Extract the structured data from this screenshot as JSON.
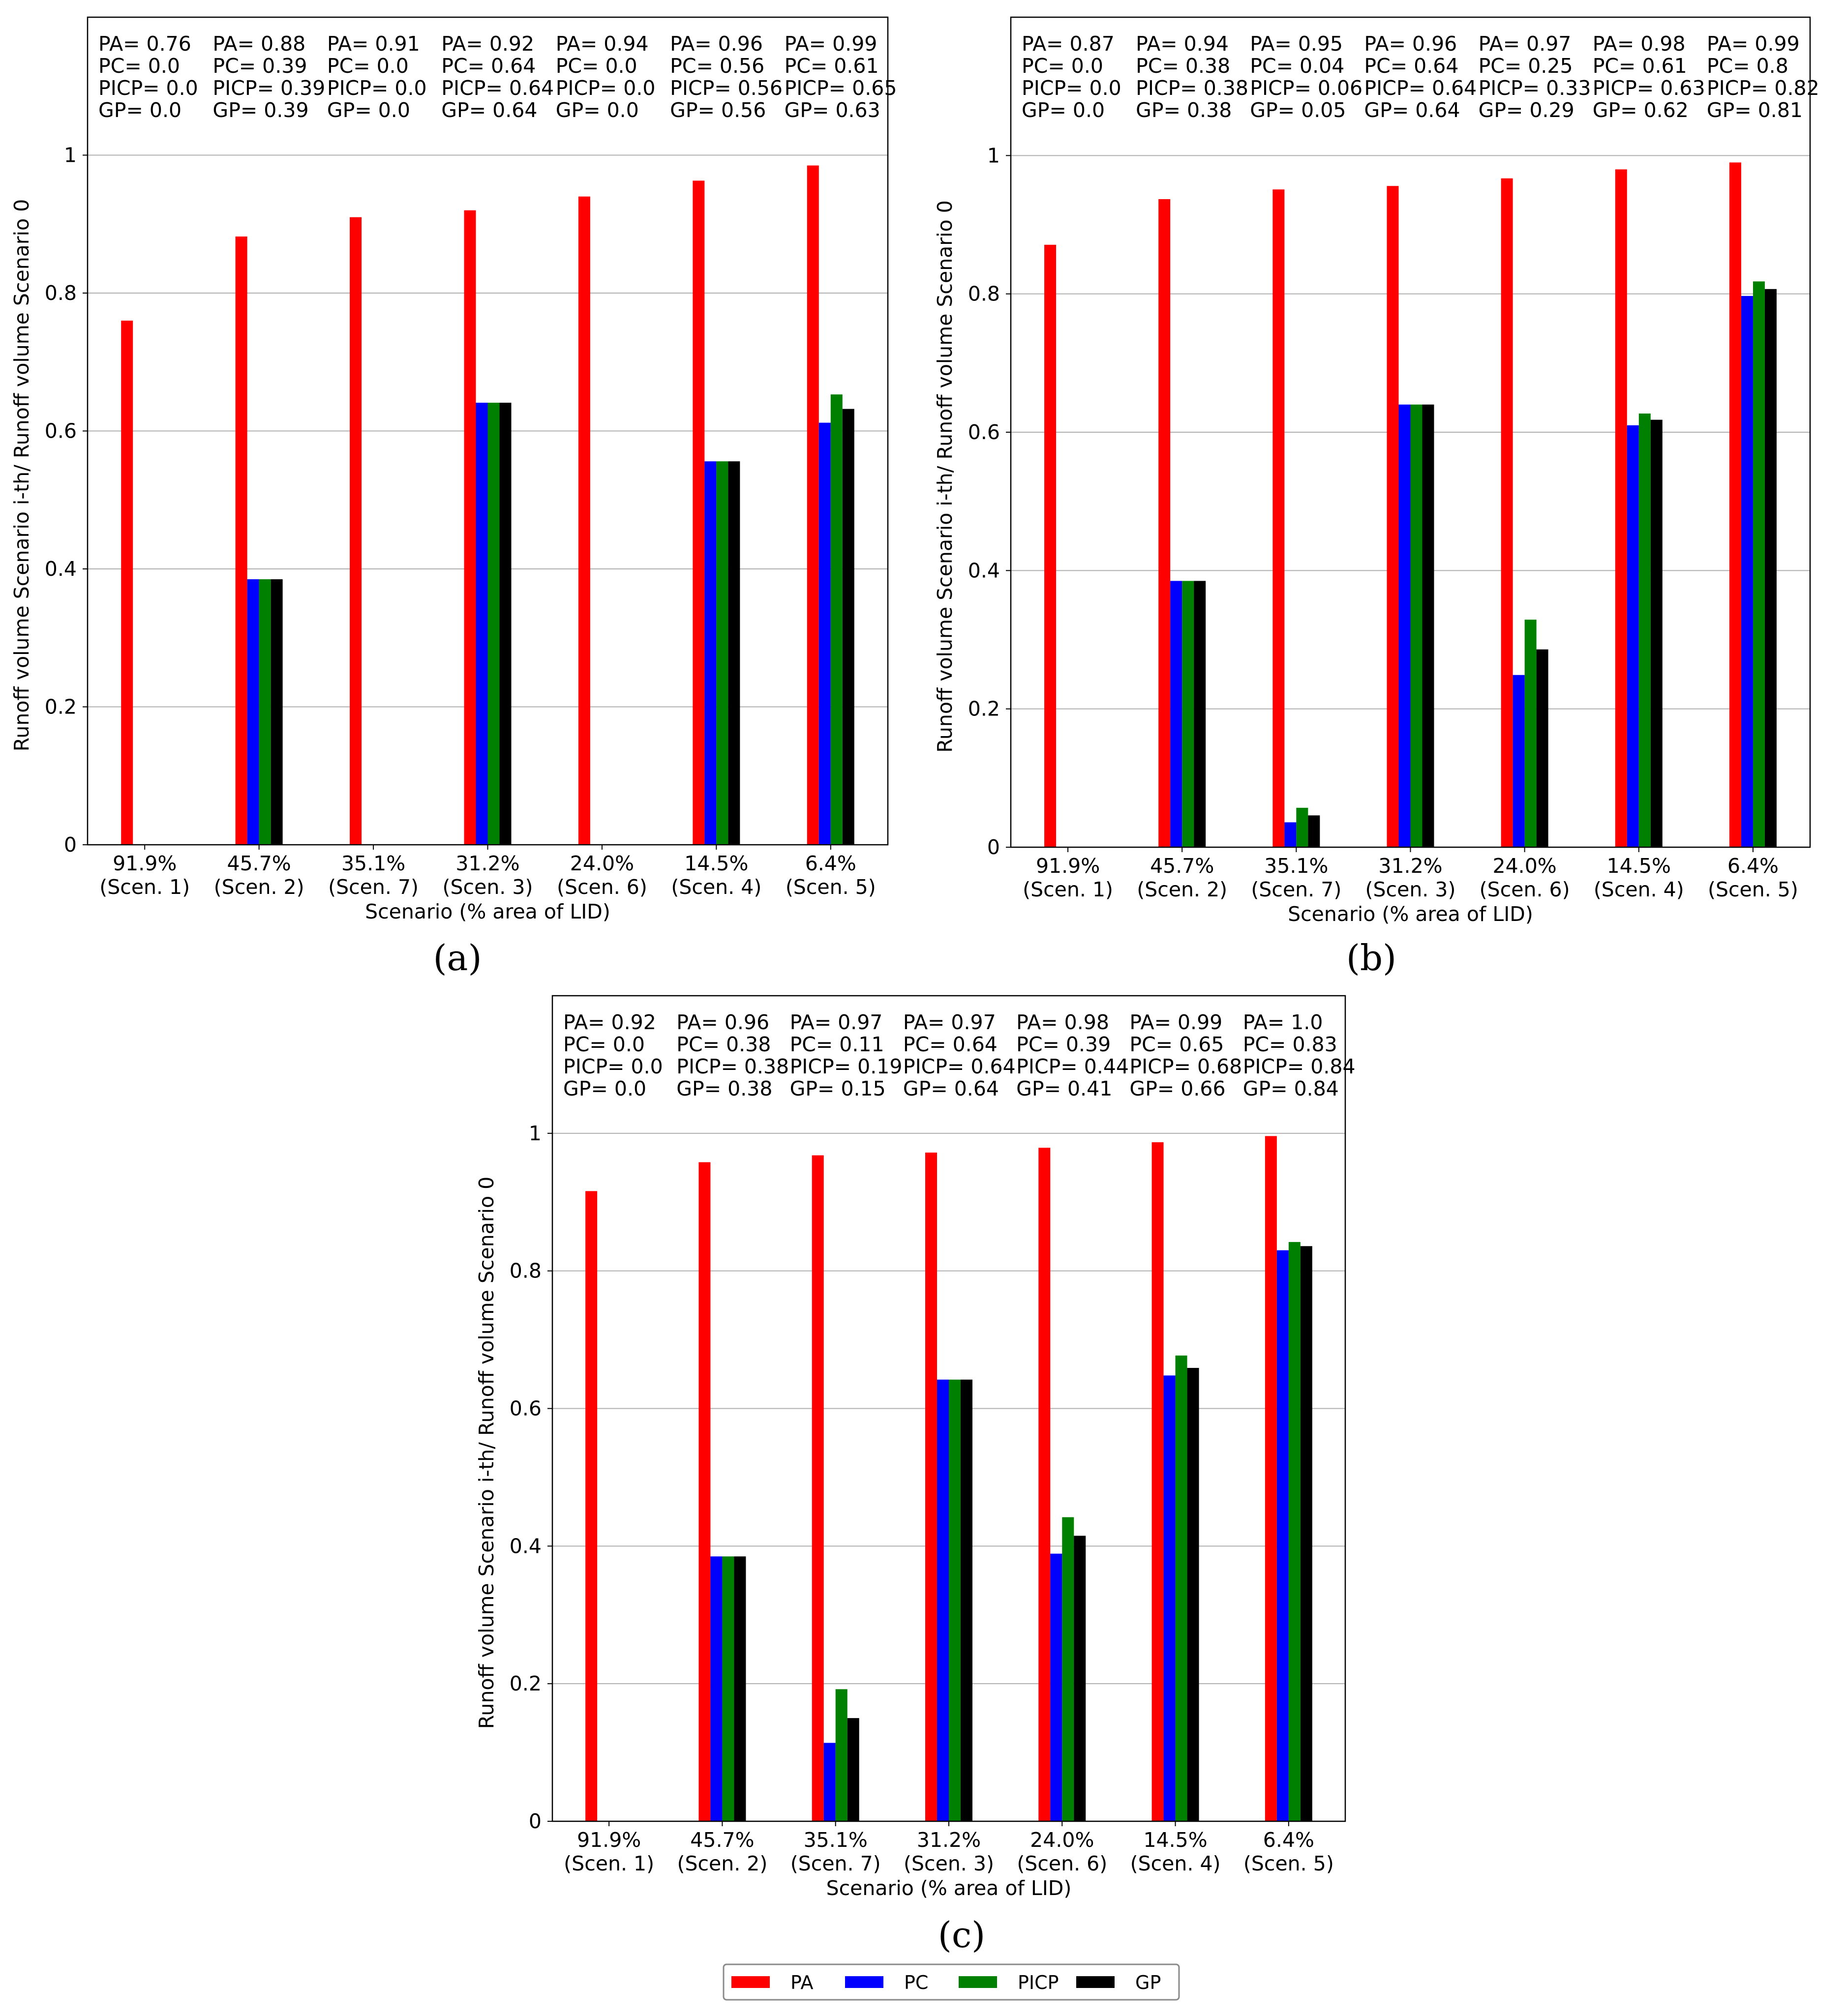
{
  "chart_data": [
    {
      "type": "bar",
      "panel_label": "(a)",
      "xlabel": "Scenario (% area of LID)",
      "ylabel": "Runoff volume Scenario i-th/ Runoff volume Scenario 0",
      "ylim": [
        0,
        1.2
      ],
      "yticks": [
        "0",
        "0.2",
        "0.4",
        "0.6",
        "0.8",
        "1"
      ],
      "grid": true,
      "categories": [
        [
          "91.9%",
          "(Scen. 1)"
        ],
        [
          "45.7%",
          "(Scen. 2)"
        ],
        [
          "35.1%",
          "(Scen. 7)"
        ],
        [
          "31.2%",
          "(Scen. 3)"
        ],
        [
          "24.0%",
          "(Scen. 6)"
        ],
        [
          "14.5%",
          "(Scen. 4)"
        ],
        [
          "6.4%",
          "(Scen. 5)"
        ]
      ],
      "series": [
        {
          "name": "PA",
          "values": [
            0.76,
            0.882,
            0.91,
            0.92,
            0.94,
            0.963,
            0.985
          ]
        },
        {
          "name": "PC",
          "values": [
            0,
            0.385,
            0,
            0.641,
            0,
            0.556,
            0.612
          ]
        },
        {
          "name": "PICP",
          "values": [
            0,
            0.385,
            0,
            0.641,
            0,
            0.556,
            0.653
          ]
        },
        {
          "name": "GP",
          "values": [
            0,
            0.385,
            0,
            0.641,
            0,
            0.556,
            0.632
          ]
        }
      ],
      "annotations": [
        [
          "PA= 0.76",
          "PC= 0.0",
          "PICP= 0.0",
          "GP= 0.0"
        ],
        [
          "PA= 0.88",
          "PC= 0.39",
          "PICP= 0.39",
          "GP= 0.39"
        ],
        [
          "PA= 0.91",
          "PC= 0.0",
          "PICP= 0.0",
          "GP= 0.0"
        ],
        [
          "PA= 0.92",
          "PC= 0.64",
          "PICP= 0.64",
          "GP= 0.64"
        ],
        [
          "PA= 0.94",
          "PC= 0.0",
          "PICP= 0.0",
          "GP= 0.0"
        ],
        [
          "PA= 0.96",
          "PC= 0.56",
          "PICP= 0.56",
          "GP= 0.56"
        ],
        [
          "PA= 0.99",
          "PC= 0.61",
          "PICP= 0.65",
          "GP= 0.63"
        ]
      ]
    },
    {
      "type": "bar",
      "panel_label": "(b)",
      "xlabel": "Scenario (% area of LID)",
      "ylabel": "Runoff volume Scenario i-th/ Runoff volume Scenario 0",
      "ylim": [
        0,
        1.2
      ],
      "yticks": [
        "0",
        "0.2",
        "0.4",
        "0.6",
        "0.8",
        "1"
      ],
      "grid": true,
      "categories": [
        [
          "91.9%",
          "(Scen. 1)"
        ],
        [
          "45.7%",
          "(Scen. 2)"
        ],
        [
          "35.1%",
          "(Scen. 7)"
        ],
        [
          "31.2%",
          "(Scen. 3)"
        ],
        [
          "24.0%",
          "(Scen. 6)"
        ],
        [
          "14.5%",
          "(Scen. 4)"
        ],
        [
          "6.4%",
          "(Scen. 5)"
        ]
      ],
      "series": [
        {
          "name": "PA",
          "values": [
            0.871,
            0.937,
            0.951,
            0.956,
            0.967,
            0.98,
            0.99
          ]
        },
        {
          "name": "PC",
          "values": [
            0,
            0.385,
            0.036,
            0.64,
            0.249,
            0.61,
            0.797
          ]
        },
        {
          "name": "PICP",
          "values": [
            0,
            0.385,
            0.057,
            0.64,
            0.329,
            0.627,
            0.818
          ]
        },
        {
          "name": "GP",
          "values": [
            0,
            0.385,
            0.046,
            0.64,
            0.286,
            0.618,
            0.807
          ]
        }
      ],
      "annotations": [
        [
          "PA= 0.87",
          "PC= 0.0",
          "PICP= 0.0",
          "GP= 0.0"
        ],
        [
          "PA= 0.94",
          "PC= 0.38",
          "PICP= 0.38",
          "GP= 0.38"
        ],
        [
          "PA= 0.95",
          "PC= 0.04",
          "PICP= 0.06",
          "GP= 0.05"
        ],
        [
          "PA= 0.96",
          "PC= 0.64",
          "PICP= 0.64",
          "GP= 0.64"
        ],
        [
          "PA= 0.97",
          "PC= 0.25",
          "PICP= 0.33",
          "GP= 0.29"
        ],
        [
          "PA= 0.98",
          "PC= 0.61",
          "PICP= 0.63",
          "GP= 0.62"
        ],
        [
          "PA= 0.99",
          "PC= 0.8",
          "PICP= 0.82",
          "GP= 0.81"
        ]
      ]
    },
    {
      "type": "bar",
      "panel_label": "(c)",
      "xlabel": "Scenario (% area of LID)",
      "ylabel": "Runoff volume Scenario i-th/ Runoff volume Scenario 0",
      "ylim": [
        0,
        1.2
      ],
      "yticks": [
        "0",
        "0.2",
        "0.4",
        "0.6",
        "0.8",
        "1"
      ],
      "grid": true,
      "categories": [
        [
          "91.9%",
          "(Scen. 1)"
        ],
        [
          "45.7%",
          "(Scen. 2)"
        ],
        [
          "35.1%",
          "(Scen. 7)"
        ],
        [
          "31.2%",
          "(Scen. 3)"
        ],
        [
          "24.0%",
          "(Scen. 6)"
        ],
        [
          "14.5%",
          "(Scen. 4)"
        ],
        [
          "6.4%",
          "(Scen. 5)"
        ]
      ],
      "series": [
        {
          "name": "PA",
          "values": [
            0.916,
            0.958,
            0.968,
            0.972,
            0.979,
            0.987,
            0.996
          ]
        },
        {
          "name": "PC",
          "values": [
            0,
            0.385,
            0.114,
            0.642,
            0.389,
            0.648,
            0.83
          ]
        },
        {
          "name": "PICP",
          "values": [
            0,
            0.385,
            0.192,
            0.642,
            0.442,
            0.677,
            0.842
          ]
        },
        {
          "name": "GP",
          "values": [
            0,
            0.385,
            0.15,
            0.642,
            0.415,
            0.659,
            0.836
          ]
        }
      ],
      "annotations": [
        [
          "PA= 0.92",
          "PC= 0.0",
          "PICP= 0.0",
          "GP= 0.0"
        ],
        [
          "PA= 0.96",
          "PC= 0.38",
          "PICP= 0.38",
          "GP= 0.38"
        ],
        [
          "PA= 0.97",
          "PC= 0.11",
          "PICP= 0.19",
          "GP= 0.15"
        ],
        [
          "PA= 0.97",
          "PC= 0.64",
          "PICP= 0.64",
          "GP= 0.64"
        ],
        [
          "PA= 0.98",
          "PC= 0.39",
          "PICP= 0.44",
          "GP= 0.41"
        ],
        [
          "PA= 0.99",
          "PC= 0.65",
          "PICP= 0.68",
          "GP= 0.66"
        ],
        [
          "PA= 1.0",
          "PC= 0.83",
          "PICP= 0.84",
          "GP= 0.84"
        ]
      ]
    }
  ],
  "legend": {
    "placement": "bottom-center",
    "entries": [
      {
        "name": "PA",
        "color": "#ff0000"
      },
      {
        "name": "PC",
        "color": "#0000ff"
      },
      {
        "name": "PICP",
        "color": "#008000"
      },
      {
        "name": "GP",
        "color": "#000000"
      }
    ]
  },
  "colors": {
    "PA": "#ff0000",
    "PC": "#0000ff",
    "PICP": "#008000",
    "GP": "#000000",
    "grid": "#b0b0b0",
    "axis": "#000000"
  }
}
